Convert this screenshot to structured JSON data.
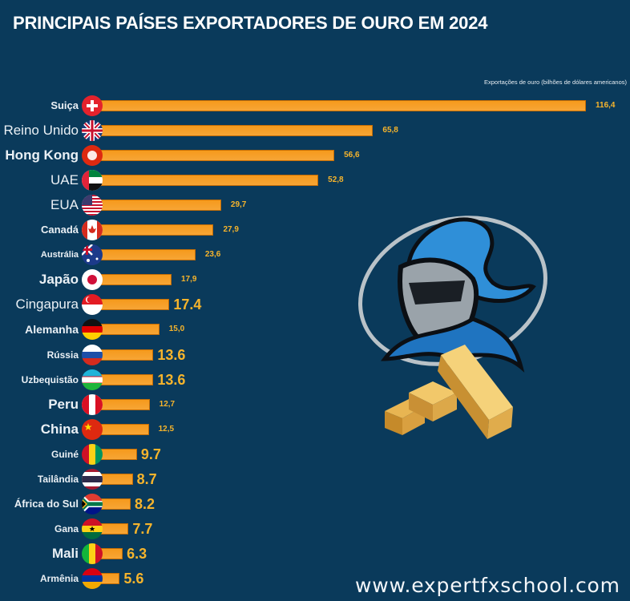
{
  "header": {
    "title": "PRINCIPAIS PAÍSES EXPORTADORES DE OURO EM 2024",
    "subtitle": "Exportações de ouro (bilhões de dólares americanos)"
  },
  "footer": {
    "website": "www.expertfxschool.com"
  },
  "colors": {
    "background": "#0a3a5b",
    "bar": "#f59a1c",
    "value_text": "#f6b42c",
    "label_text": "#eaf0f5"
  },
  "rows": [
    {
      "country": "Suiça",
      "value_label": "116,4",
      "flag": "switzerland-flag"
    },
    {
      "country": "Reino Unido",
      "value_label": "65,8",
      "flag": "uk-flag"
    },
    {
      "country": "Hong Kong",
      "value_label": "56,6",
      "flag": "hong-kong-flag"
    },
    {
      "country": "UAE",
      "value_label": "52,8",
      "flag": "uae-flag"
    },
    {
      "country": "EUA",
      "value_label": "29,7",
      "flag": "usa-flag"
    },
    {
      "country": "Canadá",
      "value_label": "27,9",
      "flag": "canada-flag"
    },
    {
      "country": "Austrália",
      "value_label": "23,6",
      "flag": "australia-flag"
    },
    {
      "country": "Japão",
      "value_label": "17,9",
      "flag": "japan-flag"
    },
    {
      "country": "Cingapura",
      "value_label": "17.4",
      "flag": "singapore-flag"
    },
    {
      "country": "Alemanha",
      "value_label": "15,0",
      "flag": "germany-flag"
    },
    {
      "country": "Rússia",
      "value_label": "13.6",
      "flag": "russia-flag"
    },
    {
      "country": "Uzbequistão",
      "value_label": "13.6",
      "flag": "uzbekistan-flag"
    },
    {
      "country": "Peru",
      "value_label": "12,7",
      "flag": "peru-flag"
    },
    {
      "country": "China",
      "value_label": "12,5",
      "flag": "china-flag"
    },
    {
      "country": "Guiné",
      "value_label": "9.7",
      "flag": "guinea-flag"
    },
    {
      "country": "Tailândia",
      "value_label": "8.7",
      "flag": "thailand-flag"
    },
    {
      "country": "África do Sul",
      "value_label": "8.2",
      "flag": "south-africa-flag"
    },
    {
      "country": "Gana",
      "value_label": "7.7",
      "flag": "ghana-flag"
    },
    {
      "country": "Mali",
      "value_label": "6.3",
      "flag": "mali-flag"
    },
    {
      "country": "Armênia",
      "value_label": "5.6",
      "flag": "armenia-flag"
    }
  ],
  "chart_data": {
    "type": "bar",
    "orientation": "horizontal",
    "title": "PRINCIPAIS PAÍSES EXPORTADORES DE OURO EM 2024",
    "xlabel": "Exportações de ouro (bilhões de dólares americanos)",
    "ylabel": "",
    "categories": [
      "Suiça",
      "Reino Unido",
      "Hong Kong",
      "UAE",
      "EUA",
      "Canadá",
      "Austrália",
      "Japão",
      "Cingapura",
      "Alemanha",
      "Rússia",
      "Uzbequistão",
      "Peru",
      "China",
      "Guiné",
      "Tailândia",
      "África do Sul",
      "Gana",
      "Mali",
      "Armênia"
    ],
    "values": [
      116.4,
      65.8,
      56.6,
      52.8,
      29.7,
      27.9,
      23.6,
      17.9,
      17.4,
      15.0,
      13.6,
      13.6,
      12.7,
      12.5,
      9.7,
      8.7,
      8.2,
      7.7,
      6.3,
      5.6
    ],
    "xlim": [
      0,
      116.4
    ],
    "grid": false,
    "legend": "none",
    "data_labels": true
  }
}
